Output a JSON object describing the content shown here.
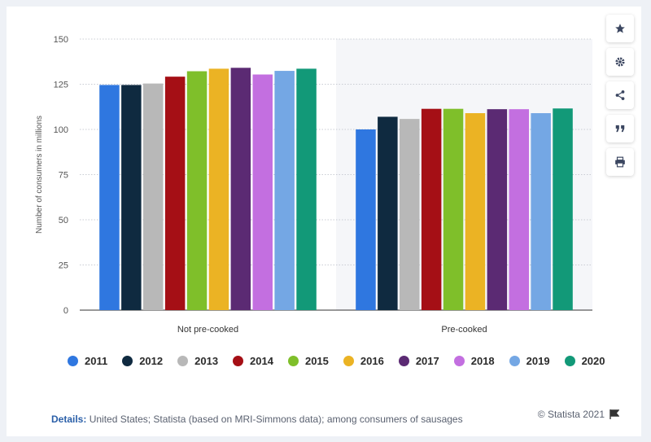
{
  "chart_data": {
    "type": "bar",
    "categories": [
      "Not pre-cooked",
      "Pre-cooked"
    ],
    "ylabel": "Number of consumers in millions",
    "xlabel": "",
    "ylim": [
      0,
      150
    ],
    "yticks": [
      0,
      25,
      50,
      75,
      100,
      125,
      150
    ],
    "grid": true,
    "legend_position": "bottom",
    "series": [
      {
        "name": "2011",
        "color": "#2f77e0",
        "values": [
          124.6,
          100.0
        ]
      },
      {
        "name": "2012",
        "color": "#0f2a40",
        "values": [
          124.6,
          107.0
        ]
      },
      {
        "name": "2013",
        "color": "#b8b8b8",
        "values": [
          125.4,
          105.8
        ]
      },
      {
        "name": "2014",
        "color": "#a50f15",
        "values": [
          129.2,
          111.4
        ]
      },
      {
        "name": "2015",
        "color": "#7fbf2a",
        "values": [
          132.2,
          111.4
        ]
      },
      {
        "name": "2016",
        "color": "#ebb324",
        "values": [
          133.6,
          109.0
        ]
      },
      {
        "name": "2017",
        "color": "#5b2a73",
        "values": [
          134.1,
          111.2
        ]
      },
      {
        "name": "2018",
        "color": "#c36fe0",
        "values": [
          130.4,
          111.2
        ]
      },
      {
        "name": "2019",
        "color": "#74a7e4",
        "values": [
          132.4,
          109.0
        ]
      },
      {
        "name": "2020",
        "color": "#129978",
        "values": [
          133.6,
          111.6
        ]
      }
    ]
  },
  "footer": {
    "details_label": "Details:",
    "details_text": "United States; Statista (based on MRI-Simmons data); among consumers of sausages",
    "credit": "© Statista 2021"
  },
  "sidebar": {
    "icons": [
      "star-icon",
      "gear-icon",
      "share-icon",
      "quote-icon",
      "print-icon"
    ]
  }
}
